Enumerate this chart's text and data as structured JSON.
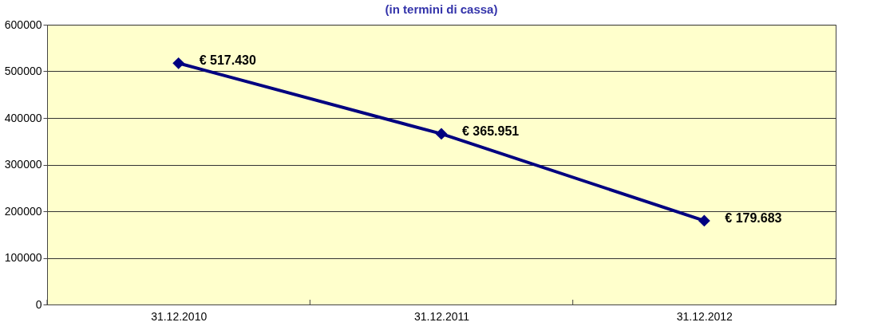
{
  "chart_data": {
    "type": "line",
    "title": "(in termini di cassa)",
    "categories": [
      "31.12.2010",
      "31.12.2011",
      "31.12.2012"
    ],
    "series": [
      {
        "color": "#000080",
        "values": [
          517430,
          365951,
          179683
        ],
        "value_labels": [
          "€ 517.430",
          "€ 365.951",
          "€ 179.683"
        ]
      }
    ],
    "ylim": [
      0,
      600000
    ],
    "yticks": [
      0,
      100000,
      200000,
      300000,
      400000,
      500000,
      600000
    ],
    "grid": "y",
    "marker": "diamond",
    "line_style": "solid",
    "legend": false
  }
}
